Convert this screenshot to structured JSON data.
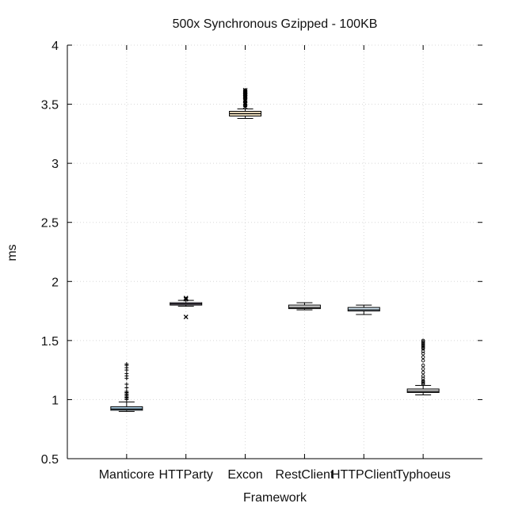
{
  "chart_data": {
    "type": "box",
    "title": "500x Synchronous Gzipped - 100KB",
    "xlabel": "Framework",
    "ylabel": "ms",
    "ylim": [
      0.5,
      4
    ],
    "yticks": [
      0.5,
      1,
      1.5,
      2,
      2.5,
      3,
      3.5,
      4
    ],
    "ytick_labels": [
      "0.5",
      "1",
      "1.5",
      "2",
      "2.5",
      "3",
      "3.5",
      "4"
    ],
    "grid": true,
    "categories": [
      "Manticore",
      "HTTParty",
      "Excon",
      "RestClient",
      "HTTPClient",
      "Typhoeus"
    ],
    "boxes": [
      {
        "name": "Manticore",
        "color": "#a9cce3",
        "whisker_low": 0.9,
        "q1": 0.91,
        "median": 0.92,
        "q3": 0.94,
        "whisker_high": 0.98,
        "outlier_marker": "plus",
        "outliers": [
          1.0,
          1.01,
          1.02,
          1.03,
          1.04,
          1.05,
          1.06,
          1.07,
          1.1,
          1.13,
          1.18,
          1.2,
          1.22,
          1.25,
          1.27,
          1.29,
          1.3
        ]
      },
      {
        "name": "HTTParty",
        "color": "#d6c7e8",
        "whisker_low": 1.79,
        "q1": 1.8,
        "median": 1.81,
        "q3": 1.82,
        "whisker_high": 1.84,
        "outlier_marker": "cross",
        "outliers": [
          1.7,
          1.85,
          1.86
        ]
      },
      {
        "name": "Excon",
        "color": "#f3e3c3",
        "whisker_low": 3.38,
        "q1": 3.4,
        "median": 3.42,
        "q3": 3.44,
        "whisker_high": 3.46,
        "outlier_marker": "star",
        "outliers": [
          3.48,
          3.5,
          3.51,
          3.53,
          3.54,
          3.56,
          3.57,
          3.58,
          3.59,
          3.6,
          3.61,
          3.62
        ]
      },
      {
        "name": "RestClient",
        "color": "#e8e8e8",
        "whisker_low": 1.76,
        "q1": 1.77,
        "median": 1.78,
        "q3": 1.8,
        "whisker_high": 1.82,
        "outlier_marker": "none",
        "outliers": []
      },
      {
        "name": "HTTPClient",
        "color": "#d4e8f5",
        "whisker_low": 1.72,
        "q1": 1.75,
        "median": 1.76,
        "q3": 1.78,
        "whisker_high": 1.8,
        "outlier_marker": "none",
        "outliers": []
      },
      {
        "name": "Typhoeus",
        "color": "#e0e0e0",
        "whisker_low": 1.04,
        "q1": 1.06,
        "median": 1.07,
        "q3": 1.09,
        "whisker_high": 1.12,
        "outlier_marker": "circle",
        "outliers": [
          1.13,
          1.14,
          1.15,
          1.16,
          1.18,
          1.2,
          1.23,
          1.26,
          1.29,
          1.33,
          1.36,
          1.39,
          1.41,
          1.43,
          1.44,
          1.45,
          1.46,
          1.47,
          1.48,
          1.49,
          1.5
        ]
      }
    ]
  }
}
